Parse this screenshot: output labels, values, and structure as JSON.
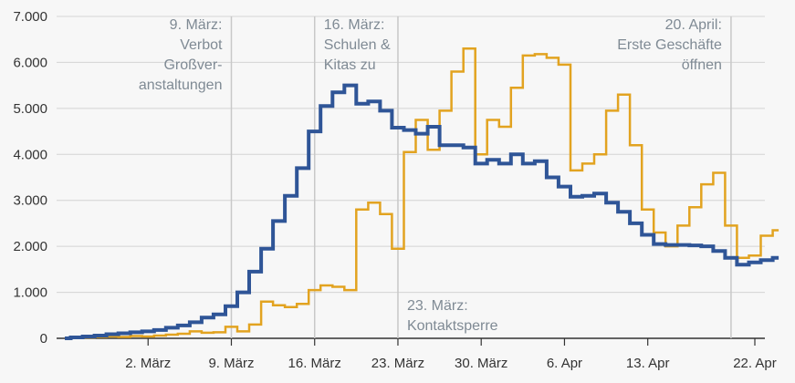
{
  "chart_data": {
    "type": "line",
    "title": "",
    "xlabel": "",
    "ylabel": "",
    "ylim": [
      0,
      7000
    ],
    "y_ticks": [
      0,
      1000,
      2000,
      3000,
      4000,
      5000,
      6000,
      7000
    ],
    "y_tick_labels": [
      "0",
      "1.000",
      "2.000",
      "3.000",
      "4.000",
      "5.000",
      "6.000",
      "7.000"
    ],
    "x_start": "2020-02-24",
    "x_end": "2020-04-22",
    "x_ticks": [
      {
        "date": "2020-03-02",
        "label": "2. März"
      },
      {
        "date": "2020-03-09",
        "label": "9. März"
      },
      {
        "date": "2020-03-16",
        "label": "16. März"
      },
      {
        "date": "2020-03-23",
        "label": "23. März"
      },
      {
        "date": "2020-03-30",
        "label": "30. März"
      },
      {
        "date": "2020-04-06",
        "label": "6. Apr"
      },
      {
        "date": "2020-04-13",
        "label": "13. Apr"
      },
      {
        "date": "2020-04-22",
        "label": "22. Apr"
      }
    ],
    "grid": true,
    "legend": "none",
    "series": [
      {
        "color": "#e2a320",
        "step": true,
        "points": [
          [
            "2020-02-24",
            0
          ],
          [
            "2020-02-25",
            10
          ],
          [
            "2020-02-26",
            20
          ],
          [
            "2020-02-27",
            30
          ],
          [
            "2020-02-28",
            40
          ],
          [
            "2020-02-29",
            30
          ],
          [
            "2020-03-01",
            50
          ],
          [
            "2020-03-02",
            40
          ],
          [
            "2020-03-03",
            60
          ],
          [
            "2020-03-04",
            80
          ],
          [
            "2020-03-05",
            100
          ],
          [
            "2020-03-06",
            150
          ],
          [
            "2020-03-07",
            120
          ],
          [
            "2020-03-08",
            130
          ],
          [
            "2020-03-09",
            250
          ],
          [
            "2020-03-10",
            150
          ],
          [
            "2020-03-11",
            300
          ],
          [
            "2020-03-12",
            800
          ],
          [
            "2020-03-13",
            720
          ],
          [
            "2020-03-14",
            680
          ],
          [
            "2020-03-15",
            750
          ],
          [
            "2020-03-16",
            1050
          ],
          [
            "2020-03-17",
            1150
          ],
          [
            "2020-03-18",
            1120
          ],
          [
            "2020-03-19",
            1050
          ],
          [
            "2020-03-20",
            2800
          ],
          [
            "2020-03-21",
            2950
          ],
          [
            "2020-03-22",
            2700
          ],
          [
            "2020-03-23",
            1950
          ],
          [
            "2020-03-24",
            4050
          ],
          [
            "2020-03-25",
            4750
          ],
          [
            "2020-03-26",
            4100
          ],
          [
            "2020-03-27",
            4950
          ],
          [
            "2020-03-28",
            5800
          ],
          [
            "2020-03-29",
            6300
          ],
          [
            "2020-03-30",
            4000
          ],
          [
            "2020-03-31",
            4750
          ],
          [
            "2020-04-01",
            4600
          ],
          [
            "2020-04-02",
            5450
          ],
          [
            "2020-04-03",
            6150
          ],
          [
            "2020-04-04",
            6180
          ],
          [
            "2020-04-05",
            6100
          ],
          [
            "2020-04-06",
            5950
          ],
          [
            "2020-04-07",
            3650
          ],
          [
            "2020-04-08",
            3800
          ],
          [
            "2020-04-09",
            4000
          ],
          [
            "2020-04-10",
            4950
          ],
          [
            "2020-04-11",
            5300
          ],
          [
            "2020-04-12",
            4200
          ],
          [
            "2020-04-13",
            2800
          ],
          [
            "2020-04-14",
            2300
          ],
          [
            "2020-04-15",
            2000
          ],
          [
            "2020-04-16",
            2450
          ],
          [
            "2020-04-17",
            2850
          ],
          [
            "2020-04-18",
            3350
          ],
          [
            "2020-04-19",
            3600
          ],
          [
            "2020-04-20",
            2450
          ],
          [
            "2020-04-21",
            1750
          ],
          [
            "2020-04-22",
            1800
          ],
          [
            "2020-04-23",
            2230
          ],
          [
            "2020-04-24",
            2350
          ]
        ]
      },
      {
        "color": "#2f5597",
        "step": true,
        "points": [
          [
            "2020-02-24",
            0
          ],
          [
            "2020-02-25",
            20
          ],
          [
            "2020-02-26",
            40
          ],
          [
            "2020-02-27",
            60
          ],
          [
            "2020-02-28",
            90
          ],
          [
            "2020-02-29",
            110
          ],
          [
            "2020-03-01",
            130
          ],
          [
            "2020-03-02",
            150
          ],
          [
            "2020-03-03",
            180
          ],
          [
            "2020-03-04",
            230
          ],
          [
            "2020-03-05",
            280
          ],
          [
            "2020-03-06",
            350
          ],
          [
            "2020-03-07",
            450
          ],
          [
            "2020-03-08",
            520
          ],
          [
            "2020-03-09",
            700
          ],
          [
            "2020-03-10",
            1000
          ],
          [
            "2020-03-11",
            1450
          ],
          [
            "2020-03-12",
            1950
          ],
          [
            "2020-03-13",
            2550
          ],
          [
            "2020-03-14",
            3100
          ],
          [
            "2020-03-15",
            3700
          ],
          [
            "2020-03-16",
            4500
          ],
          [
            "2020-03-17",
            5050
          ],
          [
            "2020-03-18",
            5350
          ],
          [
            "2020-03-19",
            5500
          ],
          [
            "2020-03-20",
            5100
          ],
          [
            "2020-03-21",
            5150
          ],
          [
            "2020-03-22",
            4950
          ],
          [
            "2020-03-23",
            4580
          ],
          [
            "2020-03-24",
            4530
          ],
          [
            "2020-03-25",
            4450
          ],
          [
            "2020-03-26",
            4600
          ],
          [
            "2020-03-27",
            4200
          ],
          [
            "2020-03-28",
            4200
          ],
          [
            "2020-03-29",
            4150
          ],
          [
            "2020-03-30",
            3800
          ],
          [
            "2020-03-31",
            3880
          ],
          [
            "2020-04-01",
            3800
          ],
          [
            "2020-04-02",
            4000
          ],
          [
            "2020-04-03",
            3800
          ],
          [
            "2020-04-04",
            3850
          ],
          [
            "2020-04-05",
            3500
          ],
          [
            "2020-04-06",
            3300
          ],
          [
            "2020-04-07",
            3080
          ],
          [
            "2020-04-08",
            3100
          ],
          [
            "2020-04-09",
            3150
          ],
          [
            "2020-04-10",
            2950
          ],
          [
            "2020-04-11",
            2750
          ],
          [
            "2020-04-12",
            2500
          ],
          [
            "2020-04-13",
            2250
          ],
          [
            "2020-04-14",
            2050
          ],
          [
            "2020-04-15",
            2030
          ],
          [
            "2020-04-16",
            2030
          ],
          [
            "2020-04-17",
            2020
          ],
          [
            "2020-04-18",
            2000
          ],
          [
            "2020-04-19",
            1900
          ],
          [
            "2020-04-20",
            1750
          ],
          [
            "2020-04-21",
            1600
          ],
          [
            "2020-04-22",
            1650
          ],
          [
            "2020-04-23",
            1700
          ],
          [
            "2020-04-24",
            1750
          ]
        ]
      }
    ],
    "annotations": [
      {
        "date": "2020-03-09",
        "lines": [
          "9. März:",
          "Verbot",
          "Großver-",
          "anstaltungen"
        ],
        "side": "left",
        "valign": "top"
      },
      {
        "date": "2020-03-16",
        "lines": [
          "16. März:",
          "Schulen &",
          "Kitas zu"
        ],
        "side": "right",
        "valign": "top"
      },
      {
        "date": "2020-03-23",
        "lines": [
          "23. März:",
          "Kontaktsperre"
        ],
        "side": "right",
        "valign": "bottom"
      },
      {
        "date": "2020-04-20",
        "lines": [
          "20. April:",
          "Erste Geschäfte",
          "öffnen"
        ],
        "side": "left",
        "valign": "top"
      }
    ]
  }
}
